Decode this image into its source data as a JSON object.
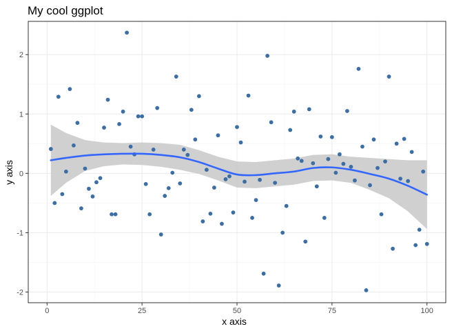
{
  "chart_data": {
    "type": "scatter",
    "title": "My cool ggplot",
    "xlabel": "x axis",
    "ylabel": "y axis",
    "xlim": [
      -4.95,
      104.95
    ],
    "ylim": [
      -2.18,
      2.56
    ],
    "x_ticks": [
      0,
      25,
      50,
      75,
      100
    ],
    "x_tick_labels": [
      "0",
      "25",
      "50",
      "75",
      "100"
    ],
    "y_ticks": [
      -2,
      -1,
      0,
      1,
      2
    ],
    "y_tick_labels": [
      "-2",
      "-1",
      "0",
      "1",
      "2"
    ],
    "grid": true,
    "colors": {
      "points": "#3a6ea5",
      "smooth_line": "#3366ff",
      "ribbon": "#c8c8c8",
      "grid_major": "#ebebeb",
      "grid_minor": "#f5f5f5",
      "panel_border": "#333333"
    },
    "series": [
      {
        "type": "points",
        "x": [
          1,
          2,
          3,
          4,
          5,
          6,
          7,
          8,
          9,
          10,
          11,
          12,
          13,
          14,
          15,
          16,
          17,
          18,
          19,
          20,
          21,
          22,
          23,
          24,
          25,
          26,
          27,
          28,
          29,
          30,
          31,
          32,
          33,
          34,
          35,
          36,
          37,
          38,
          39,
          40,
          41,
          42,
          43,
          44,
          45,
          46,
          47,
          48,
          49,
          50,
          51,
          52,
          53,
          54,
          55,
          56,
          57,
          58,
          59,
          60,
          61,
          62,
          63,
          64,
          65,
          66,
          67,
          68,
          69,
          70,
          71,
          72,
          73,
          74,
          75,
          76,
          77,
          78,
          79,
          80,
          81,
          82,
          83,
          84,
          85,
          86,
          87,
          88,
          89,
          90,
          91,
          92,
          93,
          94,
          95,
          96,
          97,
          98,
          99,
          100
        ],
        "y": [
          0.41,
          -0.5,
          1.29,
          -0.35,
          0.03,
          1.42,
          0.47,
          0.85,
          -0.59,
          0.08,
          -0.26,
          -0.39,
          -0.15,
          -0.08,
          0.77,
          1.24,
          -0.69,
          -0.69,
          0.83,
          1.04,
          2.37,
          0.45,
          0.32,
          0.96,
          0.96,
          -0.18,
          -0.69,
          0.4,
          1.1,
          -1.03,
          -0.38,
          -0.25,
          0.01,
          1.63,
          -0.17,
          0.4,
          0.31,
          1.07,
          0.57,
          1.3,
          -0.81,
          0.06,
          -0.68,
          -0.24,
          0.64,
          -0.85,
          -0.1,
          -0.05,
          -0.66,
          0.78,
          0.52,
          -0.14,
          1.31,
          -0.75,
          -0.45,
          -0.11,
          -1.69,
          1.98,
          0.86,
          -0.16,
          -1.89,
          -1.0,
          -0.55,
          0.73,
          1.04,
          0.25,
          0.21,
          -1.15,
          1.08,
          0.17,
          -0.22,
          0.62,
          -0.75,
          0.24,
          0.61,
          0.01,
          0.32,
          0.16,
          1.05,
          0.11,
          -0.12,
          1.76,
          0.45,
          -1.97,
          -0.2,
          0.57,
          0.09,
          -0.69,
          0.2,
          1.63,
          -1.27,
          0.5,
          -0.09,
          0.58,
          -0.13,
          0.36,
          -1.21,
          -0.95,
          0.03,
          -1.19
        ]
      },
      {
        "type": "smooth",
        "x": [
          1,
          5,
          10,
          15,
          20,
          25,
          30,
          35,
          40,
          45,
          50,
          55,
          60,
          65,
          70,
          75,
          80,
          85,
          90,
          95,
          100
        ],
        "y": [
          0.22,
          0.26,
          0.3,
          0.32,
          0.33,
          0.33,
          0.31,
          0.27,
          0.19,
          0.08,
          -0.02,
          -0.03,
          0.0,
          0.03,
          0.09,
          0.1,
          0.06,
          -0.01,
          -0.09,
          -0.21,
          -0.36
        ],
        "ymin": [
          -0.38,
          -0.16,
          0.04,
          0.12,
          0.15,
          0.14,
          0.11,
          0.06,
          -0.01,
          -0.12,
          -0.24,
          -0.25,
          -0.22,
          -0.19,
          -0.13,
          -0.12,
          -0.16,
          -0.28,
          -0.42,
          -0.64,
          -0.94
        ],
        "ymax": [
          0.82,
          0.68,
          0.56,
          0.52,
          0.51,
          0.52,
          0.51,
          0.48,
          0.39,
          0.28,
          0.2,
          0.19,
          0.22,
          0.25,
          0.31,
          0.32,
          0.28,
          0.26,
          0.24,
          0.22,
          0.22
        ]
      }
    ]
  }
}
